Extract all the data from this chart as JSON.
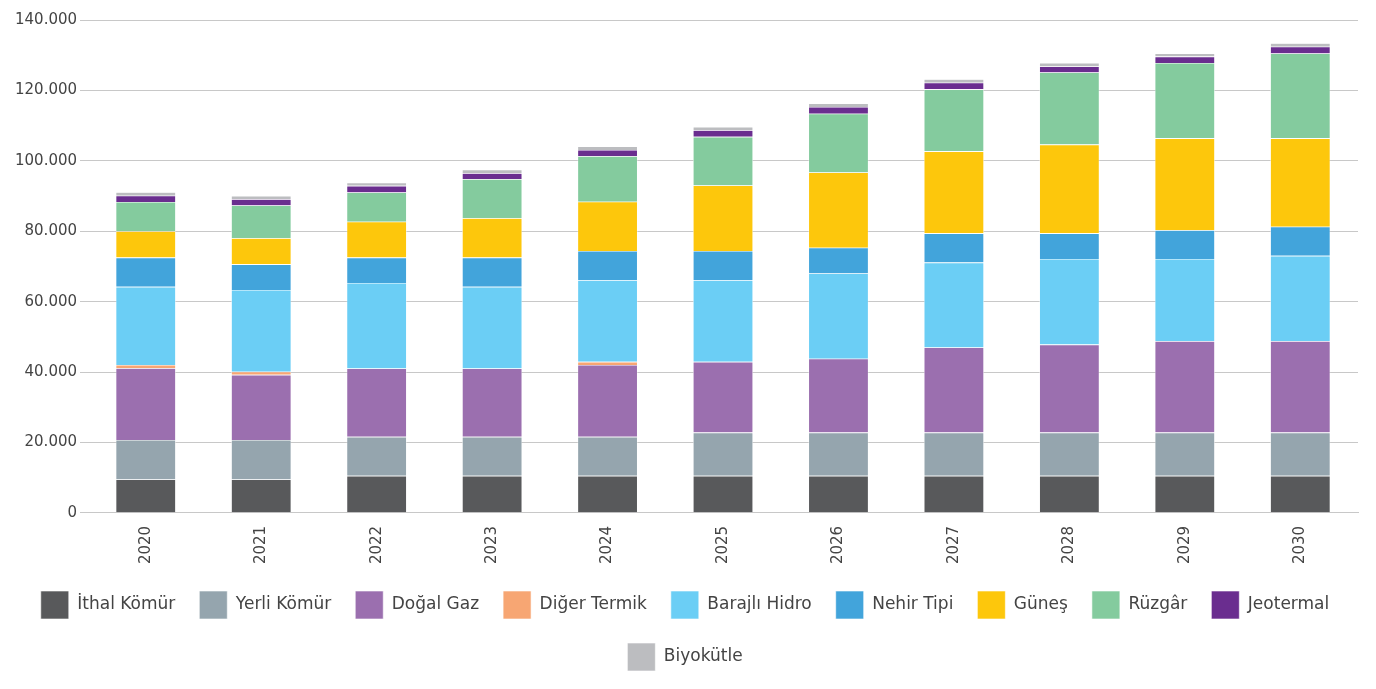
{
  "chart_data": {
    "type": "bar",
    "stacked": true,
    "categories": [
      "2020",
      "2021",
      "2022",
      "2023",
      "2024",
      "2025",
      "2026",
      "2027",
      "2028",
      "2029",
      "2030"
    ],
    "ylim": [
      0,
      140000
    ],
    "yticks": [
      0,
      {
        "value": 20000,
        "label": "20.000"
      },
      {
        "value": 40000,
        "label": "40.000"
      },
      {
        "value": 60000,
        "label": "60.000"
      },
      {
        "value": 80000,
        "label": "80.000"
      },
      {
        "value": 100000,
        "label": "100.000"
      },
      {
        "value": 120000,
        "label": "120.000"
      },
      {
        "value": 140000,
        "label": "140.000"
      }
    ],
    "grid": "y",
    "legend": "bottom",
    "series": [
      {
        "name": "İthal Kömür",
        "color": "#58595b",
        "values": [
          9500,
          9500,
          10500,
          10500,
          10500,
          10500,
          10500,
          10500,
          10500,
          10500,
          10500
        ]
      },
      {
        "name": "Yerli Kömür",
        "color": "#95a5ae",
        "values": [
          11200,
          11200,
          11100,
          11100,
          11100,
          12300,
          12300,
          12300,
          12300,
          12300,
          12300
        ]
      },
      {
        "name": "Doğal Gaz",
        "color": "#9b6faf",
        "values": [
          20400,
          18500,
          19400,
          19400,
          20400,
          20100,
          21000,
          24200,
          25000,
          26000,
          26000
        ]
      },
      {
        "name": "Diğer Termik",
        "color": "#f7a673",
        "values": [
          900,
          900,
          0,
          0,
          900,
          0,
          0,
          0,
          0,
          0,
          0
        ]
      },
      {
        "name": "Barajlı Hidro",
        "color": "#6bcef5",
        "values": [
          22200,
          23200,
          24300,
          23200,
          23200,
          23200,
          24200,
          24100,
          24300,
          23300,
          24200
        ]
      },
      {
        "name": "Nehir Tipi",
        "color": "#42a4db",
        "values": [
          8300,
          7300,
          7200,
          8300,
          8300,
          8300,
          7300,
          8300,
          7300,
          8200,
          8300
        ]
      },
      {
        "name": "Güneş",
        "color": "#fdc70c",
        "values": [
          7500,
          7400,
          10200,
          11200,
          14000,
          18600,
          21400,
          23300,
          25200,
          26100,
          25100
        ]
      },
      {
        "name": "Rüzgâr",
        "color": "#84cb9e",
        "values": [
          8300,
          9300,
          8300,
          11100,
          12900,
          13800,
          16700,
          17600,
          20500,
          21400,
          24100
        ]
      },
      {
        "name": "Jeotermal",
        "color": "#6a2d8f",
        "values": [
          1800,
          1800,
          1900,
          1700,
          1800,
          1900,
          1900,
          1900,
          1700,
          1800,
          1900
        ]
      },
      {
        "name": "Biyokütle",
        "color": "#bcbdc0",
        "values": [
          1000,
          900,
          900,
          1000,
          1000,
          900,
          1000,
          1000,
          1000,
          900,
          1000
        ]
      }
    ]
  }
}
